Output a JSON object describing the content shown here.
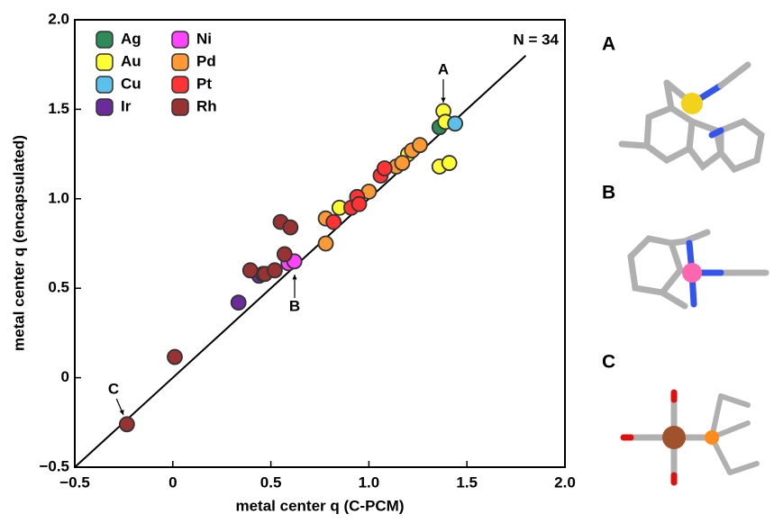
{
  "chart_data": {
    "type": "scatter",
    "xlabel": "metal center q (C-PCM)",
    "ylabel": "metal center q (encapsulated)",
    "xlim": [
      -0.5,
      2.0
    ],
    "ylim": [
      -0.5,
      2.0
    ],
    "xticks": [
      {
        "value": -0.5,
        "label": "−0.5"
      },
      0,
      0.5,
      {
        "value": 1,
        "label": "1.0"
      },
      1.5,
      {
        "value": 2,
        "label": "2.0"
      }
    ],
    "yticks": [
      {
        "value": -0.5,
        "label": "−0.5"
      },
      0,
      0.5,
      {
        "value": 1,
        "label": "1.0"
      },
      1.5,
      {
        "value": 2,
        "label": "2.0"
      }
    ],
    "grid": false,
    "legend": "upper left",
    "reference_line": {
      "x": [
        -0.5,
        1.8
      ],
      "y": [
        -0.5,
        1.8
      ],
      "color": "#000000"
    },
    "annotations": [
      "N = 34",
      "A",
      "B",
      "C"
    ],
    "series": [
      {
        "name": "Ag",
        "color": "#2e8b57",
        "x": [
          1.36
        ],
        "values": [
          1.4
        ]
      },
      {
        "name": "Au",
        "color": "#ffff33",
        "x": [
          0.85,
          1.2,
          1.38,
          1.39,
          1.36,
          1.41
        ],
        "values": [
          0.95,
          1.25,
          1.49,
          1.43,
          1.18,
          1.2
        ]
      },
      {
        "name": "Cu",
        "color": "#5bc0eb",
        "x": [
          1.44
        ],
        "values": [
          1.42
        ]
      },
      {
        "name": "Ir",
        "color": "#6a2c9a",
        "x": [
          0.335,
          0.44,
          0.46
        ],
        "values": [
          0.42,
          0.57,
          0.58
        ]
      },
      {
        "name": "Ni",
        "color": "#ff44ff",
        "x": [
          0.59,
          0.62
        ],
        "values": [
          0.64,
          0.65
        ]
      },
      {
        "name": "Pd",
        "color": "#ff9933",
        "x": [
          0.78,
          0.78,
          1.0,
          1.14,
          1.17,
          1.22,
          1.26
        ],
        "values": [
          0.89,
          0.75,
          1.04,
          1.18,
          1.2,
          1.27,
          1.3
        ]
      },
      {
        "name": "Pt",
        "color": "#ff3333",
        "x": [
          0.82,
          0.91,
          0.94,
          0.95,
          1.06,
          1.08
        ],
        "values": [
          0.87,
          0.95,
          1.01,
          0.97,
          1.13,
          1.17
        ]
      },
      {
        "name": "Rh",
        "color": "#993333",
        "x": [
          -0.234,
          0.01,
          0.395,
          0.47,
          0.52,
          0.57,
          0.55,
          0.6
        ],
        "values": [
          -0.26,
          0.116,
          0.6,
          0.58,
          0.6,
          0.69,
          0.87,
          0.84
        ]
      }
    ]
  },
  "panels": [
    "A",
    "B",
    "C"
  ]
}
